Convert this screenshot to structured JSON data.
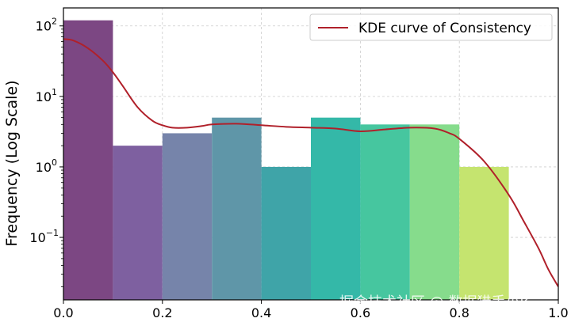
{
  "chart_data": {
    "type": "bar",
    "ylabel": "Frequency (Log Scale)",
    "xlabel": "",
    "yscale": "log",
    "xlim": [
      0.0,
      1.0
    ],
    "ylim": [
      0.013,
      180
    ],
    "grid": true,
    "legend_position": "top-right",
    "bins": [
      {
        "x0": 0.0,
        "x1": 0.1,
        "value": 120,
        "color": "#7c4783"
      },
      {
        "x0": 0.1,
        "x1": 0.2,
        "value": 2,
        "color": "#7e60a0"
      },
      {
        "x0": 0.2,
        "x1": 0.3,
        "value": 3,
        "color": "#7684aa"
      },
      {
        "x0": 0.3,
        "x1": 0.4,
        "value": 5,
        "color": "#5f96a8"
      },
      {
        "x0": 0.4,
        "x1": 0.5,
        "value": 1,
        "color": "#3fa4a8"
      },
      {
        "x0": 0.5,
        "x1": 0.6,
        "value": 5,
        "color": "#34b8a8"
      },
      {
        "x0": 0.6,
        "x1": 0.7,
        "value": 4,
        "color": "#46c69f"
      },
      {
        "x0": 0.7,
        "x1": 0.8,
        "value": 4,
        "color": "#86dc8c"
      },
      {
        "x0": 0.8,
        "x1": 0.9,
        "value": 1,
        "color": "#c5e46f"
      }
    ],
    "series": [
      {
        "name": "KDE curve of Consistency",
        "color": "#b0202a",
        "x": [
          0.0,
          0.02,
          0.05,
          0.08,
          0.1,
          0.12,
          0.15,
          0.18,
          0.2,
          0.22,
          0.25,
          0.28,
          0.3,
          0.35,
          0.4,
          0.45,
          0.5,
          0.55,
          0.6,
          0.65,
          0.7,
          0.75,
          0.78,
          0.8,
          0.85,
          0.9,
          0.93,
          0.96,
          0.98,
          1.0
        ],
        "y": [
          65,
          62,
          48,
          32,
          22,
          14,
          7,
          4.5,
          3.9,
          3.6,
          3.6,
          3.8,
          4.0,
          4.1,
          3.9,
          3.7,
          3.6,
          3.5,
          3.2,
          3.4,
          3.6,
          3.5,
          3.0,
          2.5,
          1.2,
          0.4,
          0.17,
          0.07,
          0.035,
          0.02
        ]
      }
    ],
    "xticks": [
      "0.0",
      "0.2",
      "0.4",
      "0.6",
      "0.8",
      "1.0"
    ],
    "yticks": [
      {
        "base": "10",
        "exp": "−1",
        "value": 0.1
      },
      {
        "base": "10",
        "exp": "0",
        "value": 1
      },
      {
        "base": "10",
        "exp": "1",
        "value": 10
      },
      {
        "base": "10",
        "exp": "2",
        "value": 100
      }
    ]
  },
  "watermark": "掘金技术社区 @ 数据猎手小k"
}
